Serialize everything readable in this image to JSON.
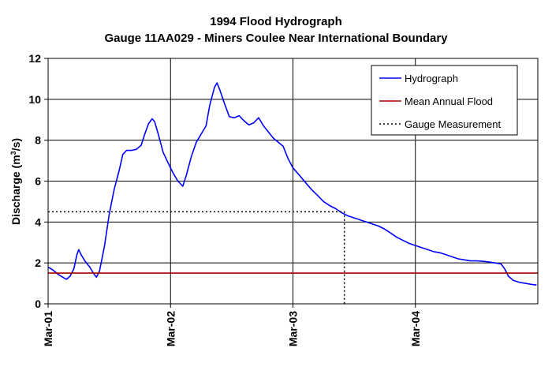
{
  "chart_data": {
    "type": "line",
    "title": "1994 Flood Hydrograph",
    "subtitle": "Gauge 11AA029 - Miners Coulee Near International Boundary",
    "ylabel_main": "Discharge (m",
    "ylabel_sup": "3",
    "ylabel_end": "/s)",
    "xlabel": "",
    "ylim": [
      0,
      12
    ],
    "yticks": [
      0,
      2,
      4,
      6,
      8,
      10,
      12
    ],
    "xlim": [
      0,
      4
    ],
    "xticks": [
      {
        "pos": 0,
        "label": "Mar-01"
      },
      {
        "pos": 1,
        "label": "Mar-02"
      },
      {
        "pos": 2,
        "label": "Mar-03"
      },
      {
        "pos": 3,
        "label": "Mar-04"
      }
    ],
    "grid": true,
    "legend_position": "top-right",
    "series": [
      {
        "name": "Hydrograph",
        "color": "#0000ff",
        "style": "solid",
        "points": [
          [
            0.0,
            1.8
          ],
          [
            0.04,
            1.65
          ],
          [
            0.08,
            1.45
          ],
          [
            0.12,
            1.3
          ],
          [
            0.15,
            1.2
          ],
          [
            0.18,
            1.35
          ],
          [
            0.21,
            1.7
          ],
          [
            0.235,
            2.4
          ],
          [
            0.25,
            2.65
          ],
          [
            0.27,
            2.4
          ],
          [
            0.3,
            2.1
          ],
          [
            0.34,
            1.8
          ],
          [
            0.37,
            1.5
          ],
          [
            0.395,
            1.3
          ],
          [
            0.42,
            1.6
          ],
          [
            0.46,
            2.8
          ],
          [
            0.5,
            4.4
          ],
          [
            0.54,
            5.6
          ],
          [
            0.58,
            6.5
          ],
          [
            0.61,
            7.3
          ],
          [
            0.64,
            7.5
          ],
          [
            0.68,
            7.5
          ],
          [
            0.72,
            7.55
          ],
          [
            0.76,
            7.75
          ],
          [
            0.79,
            8.3
          ],
          [
            0.82,
            8.8
          ],
          [
            0.85,
            9.05
          ],
          [
            0.87,
            8.9
          ],
          [
            0.9,
            8.3
          ],
          [
            0.94,
            7.4
          ],
          [
            0.98,
            6.9
          ],
          [
            1.02,
            6.4
          ],
          [
            1.06,
            6.0
          ],
          [
            1.1,
            5.75
          ],
          [
            1.13,
            6.3
          ],
          [
            1.17,
            7.2
          ],
          [
            1.21,
            7.9
          ],
          [
            1.25,
            8.3
          ],
          [
            1.29,
            8.7
          ],
          [
            1.32,
            9.7
          ],
          [
            1.36,
            10.6
          ],
          [
            1.38,
            10.8
          ],
          [
            1.4,
            10.5
          ],
          [
            1.44,
            9.8
          ],
          [
            1.48,
            9.15
          ],
          [
            1.52,
            9.1
          ],
          [
            1.56,
            9.2
          ],
          [
            1.6,
            8.95
          ],
          [
            1.64,
            8.75
          ],
          [
            1.68,
            8.85
          ],
          [
            1.72,
            9.1
          ],
          [
            1.76,
            8.7
          ],
          [
            1.8,
            8.4
          ],
          [
            1.84,
            8.1
          ],
          [
            1.88,
            7.9
          ],
          [
            1.92,
            7.7
          ],
          [
            1.96,
            7.1
          ],
          [
            2.0,
            6.65
          ],
          [
            2.05,
            6.3
          ],
          [
            2.1,
            5.95
          ],
          [
            2.15,
            5.6
          ],
          [
            2.2,
            5.3
          ],
          [
            2.25,
            5.0
          ],
          [
            2.3,
            4.8
          ],
          [
            2.35,
            4.65
          ],
          [
            2.4,
            4.45
          ],
          [
            2.45,
            4.3
          ],
          [
            2.5,
            4.2
          ],
          [
            2.55,
            4.1
          ],
          [
            2.6,
            4.0
          ],
          [
            2.65,
            3.9
          ],
          [
            2.7,
            3.8
          ],
          [
            2.75,
            3.65
          ],
          [
            2.8,
            3.45
          ],
          [
            2.85,
            3.25
          ],
          [
            2.9,
            3.1
          ],
          [
            2.95,
            2.95
          ],
          [
            3.0,
            2.85
          ],
          [
            3.05,
            2.75
          ],
          [
            3.1,
            2.65
          ],
          [
            3.15,
            2.55
          ],
          [
            3.2,
            2.5
          ],
          [
            3.25,
            2.4
          ],
          [
            3.3,
            2.3
          ],
          [
            3.35,
            2.2
          ],
          [
            3.4,
            2.15
          ],
          [
            3.45,
            2.1
          ],
          [
            3.5,
            2.1
          ],
          [
            3.55,
            2.08
          ],
          [
            3.6,
            2.05
          ],
          [
            3.65,
            2.0
          ],
          [
            3.7,
            1.95
          ],
          [
            3.73,
            1.7
          ],
          [
            3.76,
            1.35
          ],
          [
            3.8,
            1.15
          ],
          [
            3.85,
            1.05
          ],
          [
            3.9,
            1.0
          ],
          [
            3.95,
            0.95
          ],
          [
            3.99,
            0.92
          ]
        ]
      },
      {
        "name": "Mean Annual Flood",
        "color": "#aa0000",
        "style": "solid",
        "points": [
          [
            0.0,
            1.5
          ],
          [
            4.0,
            1.5
          ]
        ]
      },
      {
        "name": "Gauge Measurement",
        "color": "#000000",
        "style": "dotted",
        "points": [
          [
            0.0,
            4.5
          ],
          [
            2.42,
            4.5
          ],
          [
            2.42,
            0.0
          ]
        ]
      }
    ]
  }
}
